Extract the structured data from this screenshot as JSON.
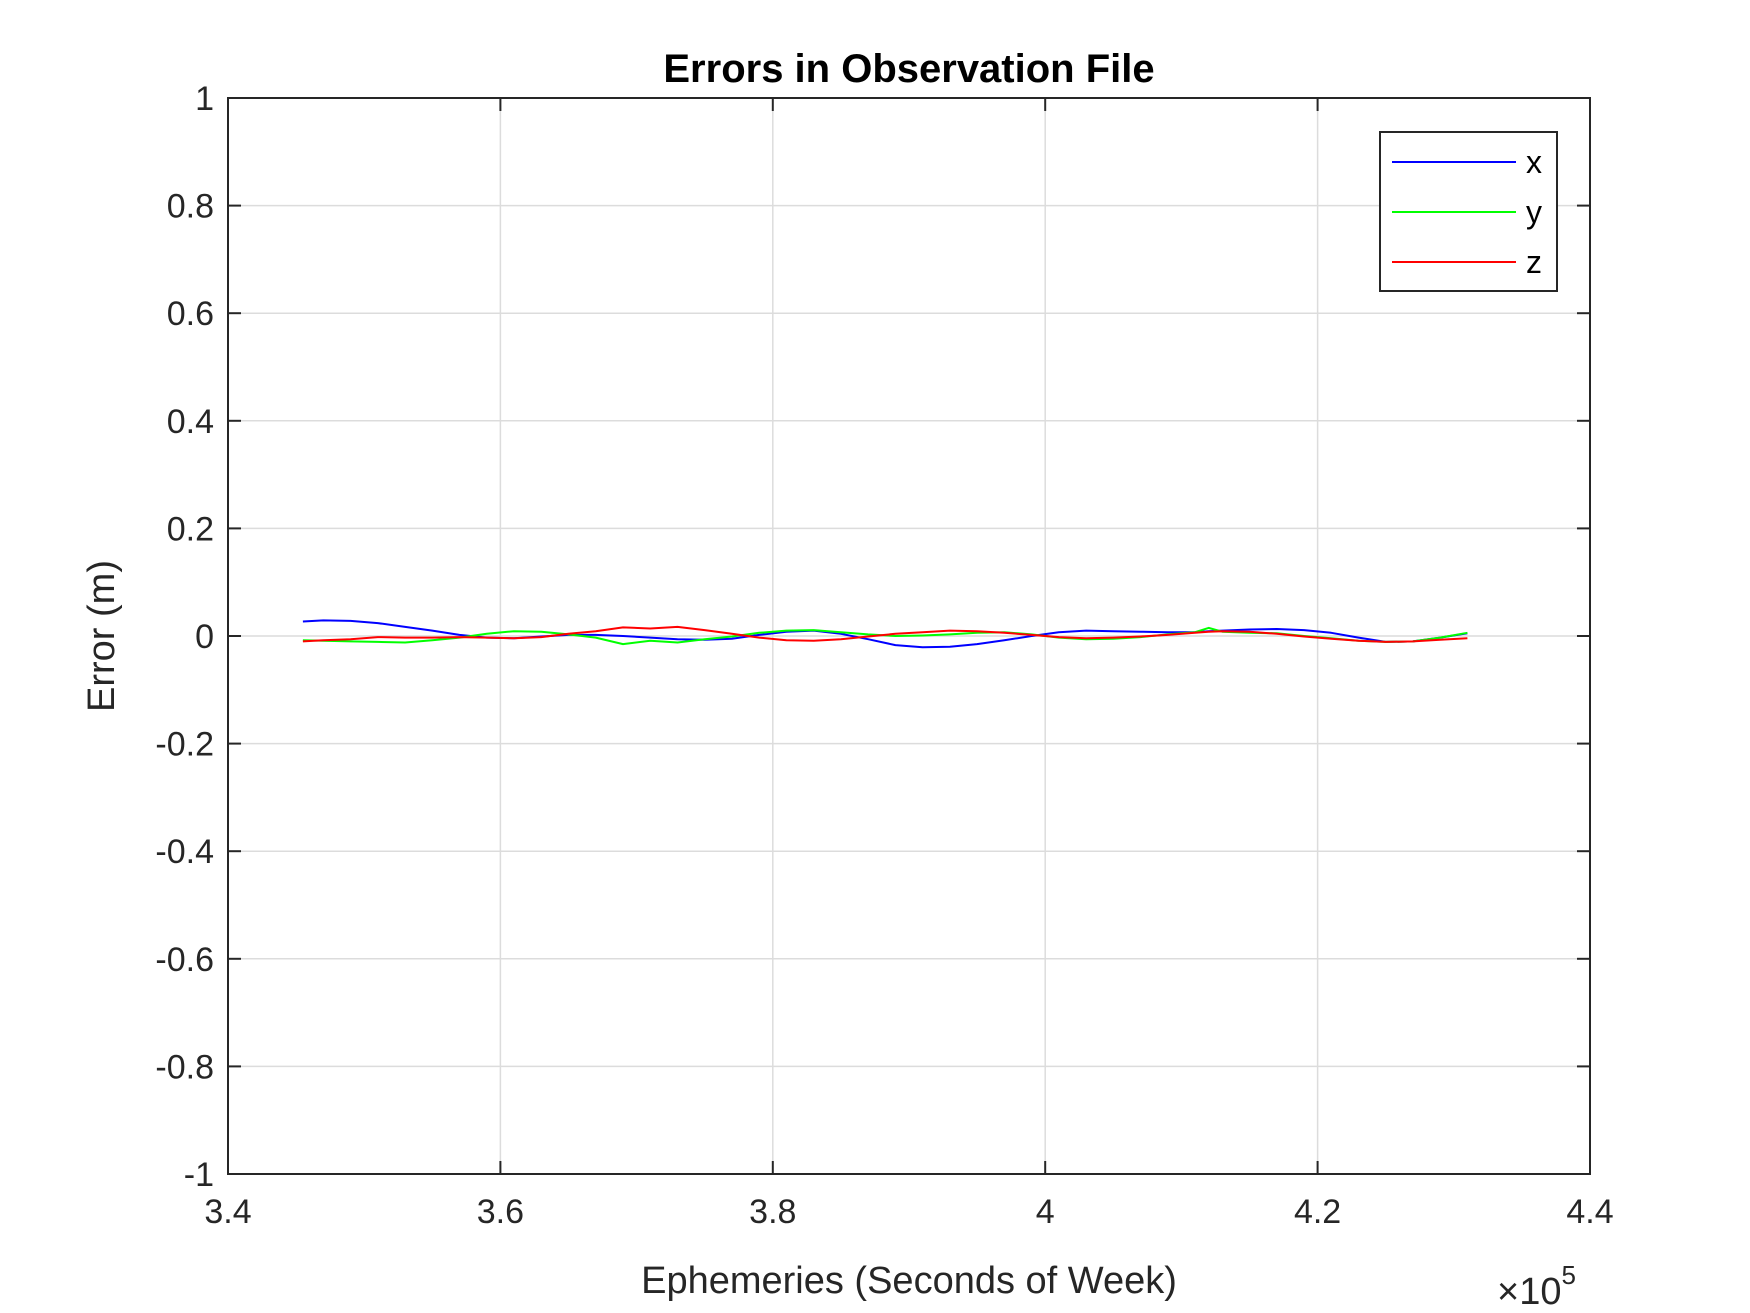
{
  "chart_data": {
    "type": "line",
    "title": "Errors in Observation File",
    "xlabel": "Ephemeries (Seconds of Week)",
    "ylabel": "Error (m)",
    "x_exponent_label": {
      "base": "×10",
      "exponent": "5"
    },
    "xlim": [
      3.4,
      4.4
    ],
    "ylim": [
      -1,
      1
    ],
    "xticks": [
      3.4,
      3.6,
      3.8,
      4.0,
      4.2,
      4.4
    ],
    "xtick_labels": [
      "3.4",
      "3.6",
      "3.8",
      "4",
      "4.2",
      "4.4"
    ],
    "yticks": [
      -1,
      -0.8,
      -0.6,
      -0.4,
      -0.2,
      0,
      0.2,
      0.4,
      0.6,
      0.8,
      1
    ],
    "ytick_labels": [
      "-1",
      "-0.8",
      "-0.6",
      "-0.4",
      "-0.2",
      "0",
      "0.2",
      "0.4",
      "0.6",
      "0.8",
      "1"
    ],
    "grid": true,
    "legend_position": "top-right",
    "x": [
      3.455,
      3.47,
      3.49,
      3.51,
      3.53,
      3.55,
      3.57,
      3.59,
      3.61,
      3.63,
      3.65,
      3.67,
      3.69,
      3.71,
      3.73,
      3.75,
      3.77,
      3.79,
      3.81,
      3.83,
      3.85,
      3.87,
      3.89,
      3.91,
      3.93,
      3.95,
      3.97,
      3.99,
      4.01,
      4.03,
      4.05,
      4.07,
      4.09,
      4.11,
      4.12,
      4.13,
      4.15,
      4.17,
      4.19,
      4.21,
      4.23,
      4.25,
      4.27,
      4.29,
      4.31
    ],
    "series": [
      {
        "name": "x",
        "color": "#0000ff",
        "values": [
          0.027,
          0.029,
          0.028,
          0.024,
          0.017,
          0.01,
          0.002,
          -0.003,
          -0.004,
          -0.001,
          0.002,
          0.002,
          0.0,
          -0.003,
          -0.006,
          -0.007,
          -0.005,
          0.002,
          0.008,
          0.01,
          0.004,
          -0.006,
          -0.017,
          -0.021,
          -0.02,
          -0.015,
          -0.008,
          0.0,
          0.007,
          0.01,
          0.009,
          0.008,
          0.007,
          0.007,
          0.009,
          0.01,
          0.012,
          0.013,
          0.011,
          0.006,
          -0.003,
          -0.011,
          -0.01,
          -0.003,
          0.005
        ]
      },
      {
        "name": "y",
        "color": "#00ff00",
        "values": [
          -0.008,
          -0.009,
          -0.01,
          -0.011,
          -0.012,
          -0.008,
          -0.003,
          0.004,
          0.009,
          0.008,
          0.003,
          -0.003,
          -0.015,
          -0.009,
          -0.012,
          -0.006,
          -0.001,
          0.006,
          0.01,
          0.011,
          0.007,
          0.003,
          0.0,
          0.001,
          0.003,
          0.006,
          0.007,
          0.003,
          -0.003,
          -0.006,
          -0.005,
          -0.002,
          0.003,
          0.007,
          0.015,
          0.008,
          0.006,
          0.005,
          0.0,
          -0.004,
          -0.009,
          -0.011,
          -0.01,
          -0.003,
          0.006
        ]
      },
      {
        "name": "z",
        "color": "#ff0000",
        "values": [
          -0.01,
          -0.008,
          -0.006,
          -0.002,
          -0.003,
          -0.003,
          -0.002,
          -0.003,
          -0.004,
          -0.002,
          0.004,
          0.009,
          0.016,
          0.014,
          0.017,
          0.011,
          0.004,
          -0.003,
          -0.008,
          -0.009,
          -0.006,
          -0.001,
          0.004,
          0.007,
          0.01,
          0.009,
          0.006,
          0.002,
          -0.002,
          -0.004,
          -0.003,
          -0.001,
          0.002,
          0.006,
          0.008,
          0.009,
          0.008,
          0.004,
          -0.001,
          -0.005,
          -0.009,
          -0.011,
          -0.01,
          -0.007,
          -0.004
        ]
      }
    ]
  }
}
